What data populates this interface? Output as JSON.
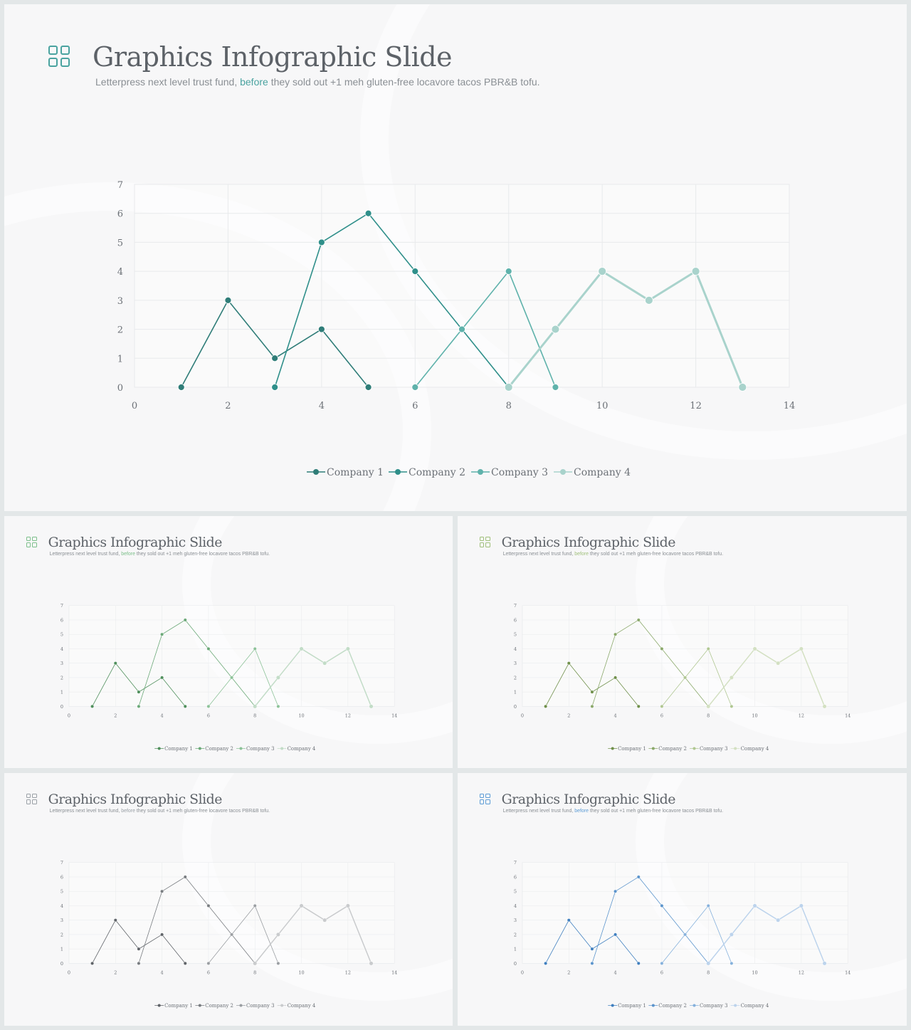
{
  "slide": {
    "title": "Graphics Infographic Slide",
    "subtitle_before": "Letterpress next level trust fund, ",
    "subtitle_highlight": "before",
    "subtitle_after": " they sold out +1 meh gluten-free locavore tacos PBR&B tofu."
  },
  "icon": "grid-four-squares-icon",
  "themes": [
    {
      "name": "teal",
      "accent": "#4aa3a0",
      "series_colors": [
        "#2f7d78",
        "#2f8f8a",
        "#5fb2ab",
        "#a9d3cc"
      ]
    },
    {
      "name": "green",
      "accent": "#7cbf8a",
      "series_colors": [
        "#4f8f5c",
        "#6aa877",
        "#8cc298",
        "#c2dcc7"
      ]
    },
    {
      "name": "olive",
      "accent": "#9fbf7a",
      "series_colors": [
        "#6f8f4a",
        "#8aa86a",
        "#b0c792",
        "#d3e0c2"
      ]
    },
    {
      "name": "gray",
      "accent": "#9aa0a6",
      "series_colors": [
        "#5f6368",
        "#787c80",
        "#9a9ea2",
        "#c9cbcd"
      ]
    },
    {
      "name": "blue",
      "accent": "#5b9bd5",
      "series_colors": [
        "#3f7fbf",
        "#5b94cc",
        "#86b1dc",
        "#bcd3ec"
      ]
    }
  ],
  "chart_data": {
    "type": "scatter",
    "xlim": [
      0,
      14
    ],
    "ylim": [
      0,
      7
    ],
    "x_ticks": [
      "0",
      "2",
      "4",
      "6",
      "8",
      "10",
      "12",
      "14"
    ],
    "y_ticks": [
      "0",
      "1",
      "2",
      "3",
      "4",
      "5",
      "6",
      "7"
    ],
    "grid": true,
    "legend": "bottom",
    "series": [
      {
        "name": "Company 1",
        "points": [
          [
            1,
            0
          ],
          [
            2,
            3
          ],
          [
            3,
            1
          ],
          [
            4,
            2
          ],
          [
            5,
            0
          ]
        ]
      },
      {
        "name": "Company 2",
        "points": [
          [
            3,
            0
          ],
          [
            4,
            5
          ],
          [
            5,
            6
          ],
          [
            6,
            4
          ],
          [
            7,
            2
          ],
          [
            8,
            0
          ]
        ]
      },
      {
        "name": "Company 3",
        "points": [
          [
            6,
            0
          ],
          [
            7,
            2
          ],
          [
            8,
            4
          ],
          [
            9,
            0
          ]
        ]
      },
      {
        "name": "Company 4",
        "points": [
          [
            8,
            0
          ],
          [
            9,
            2
          ],
          [
            10,
            4
          ],
          [
            11,
            3
          ],
          [
            12,
            4
          ],
          [
            13,
            0
          ]
        ]
      }
    ]
  }
}
